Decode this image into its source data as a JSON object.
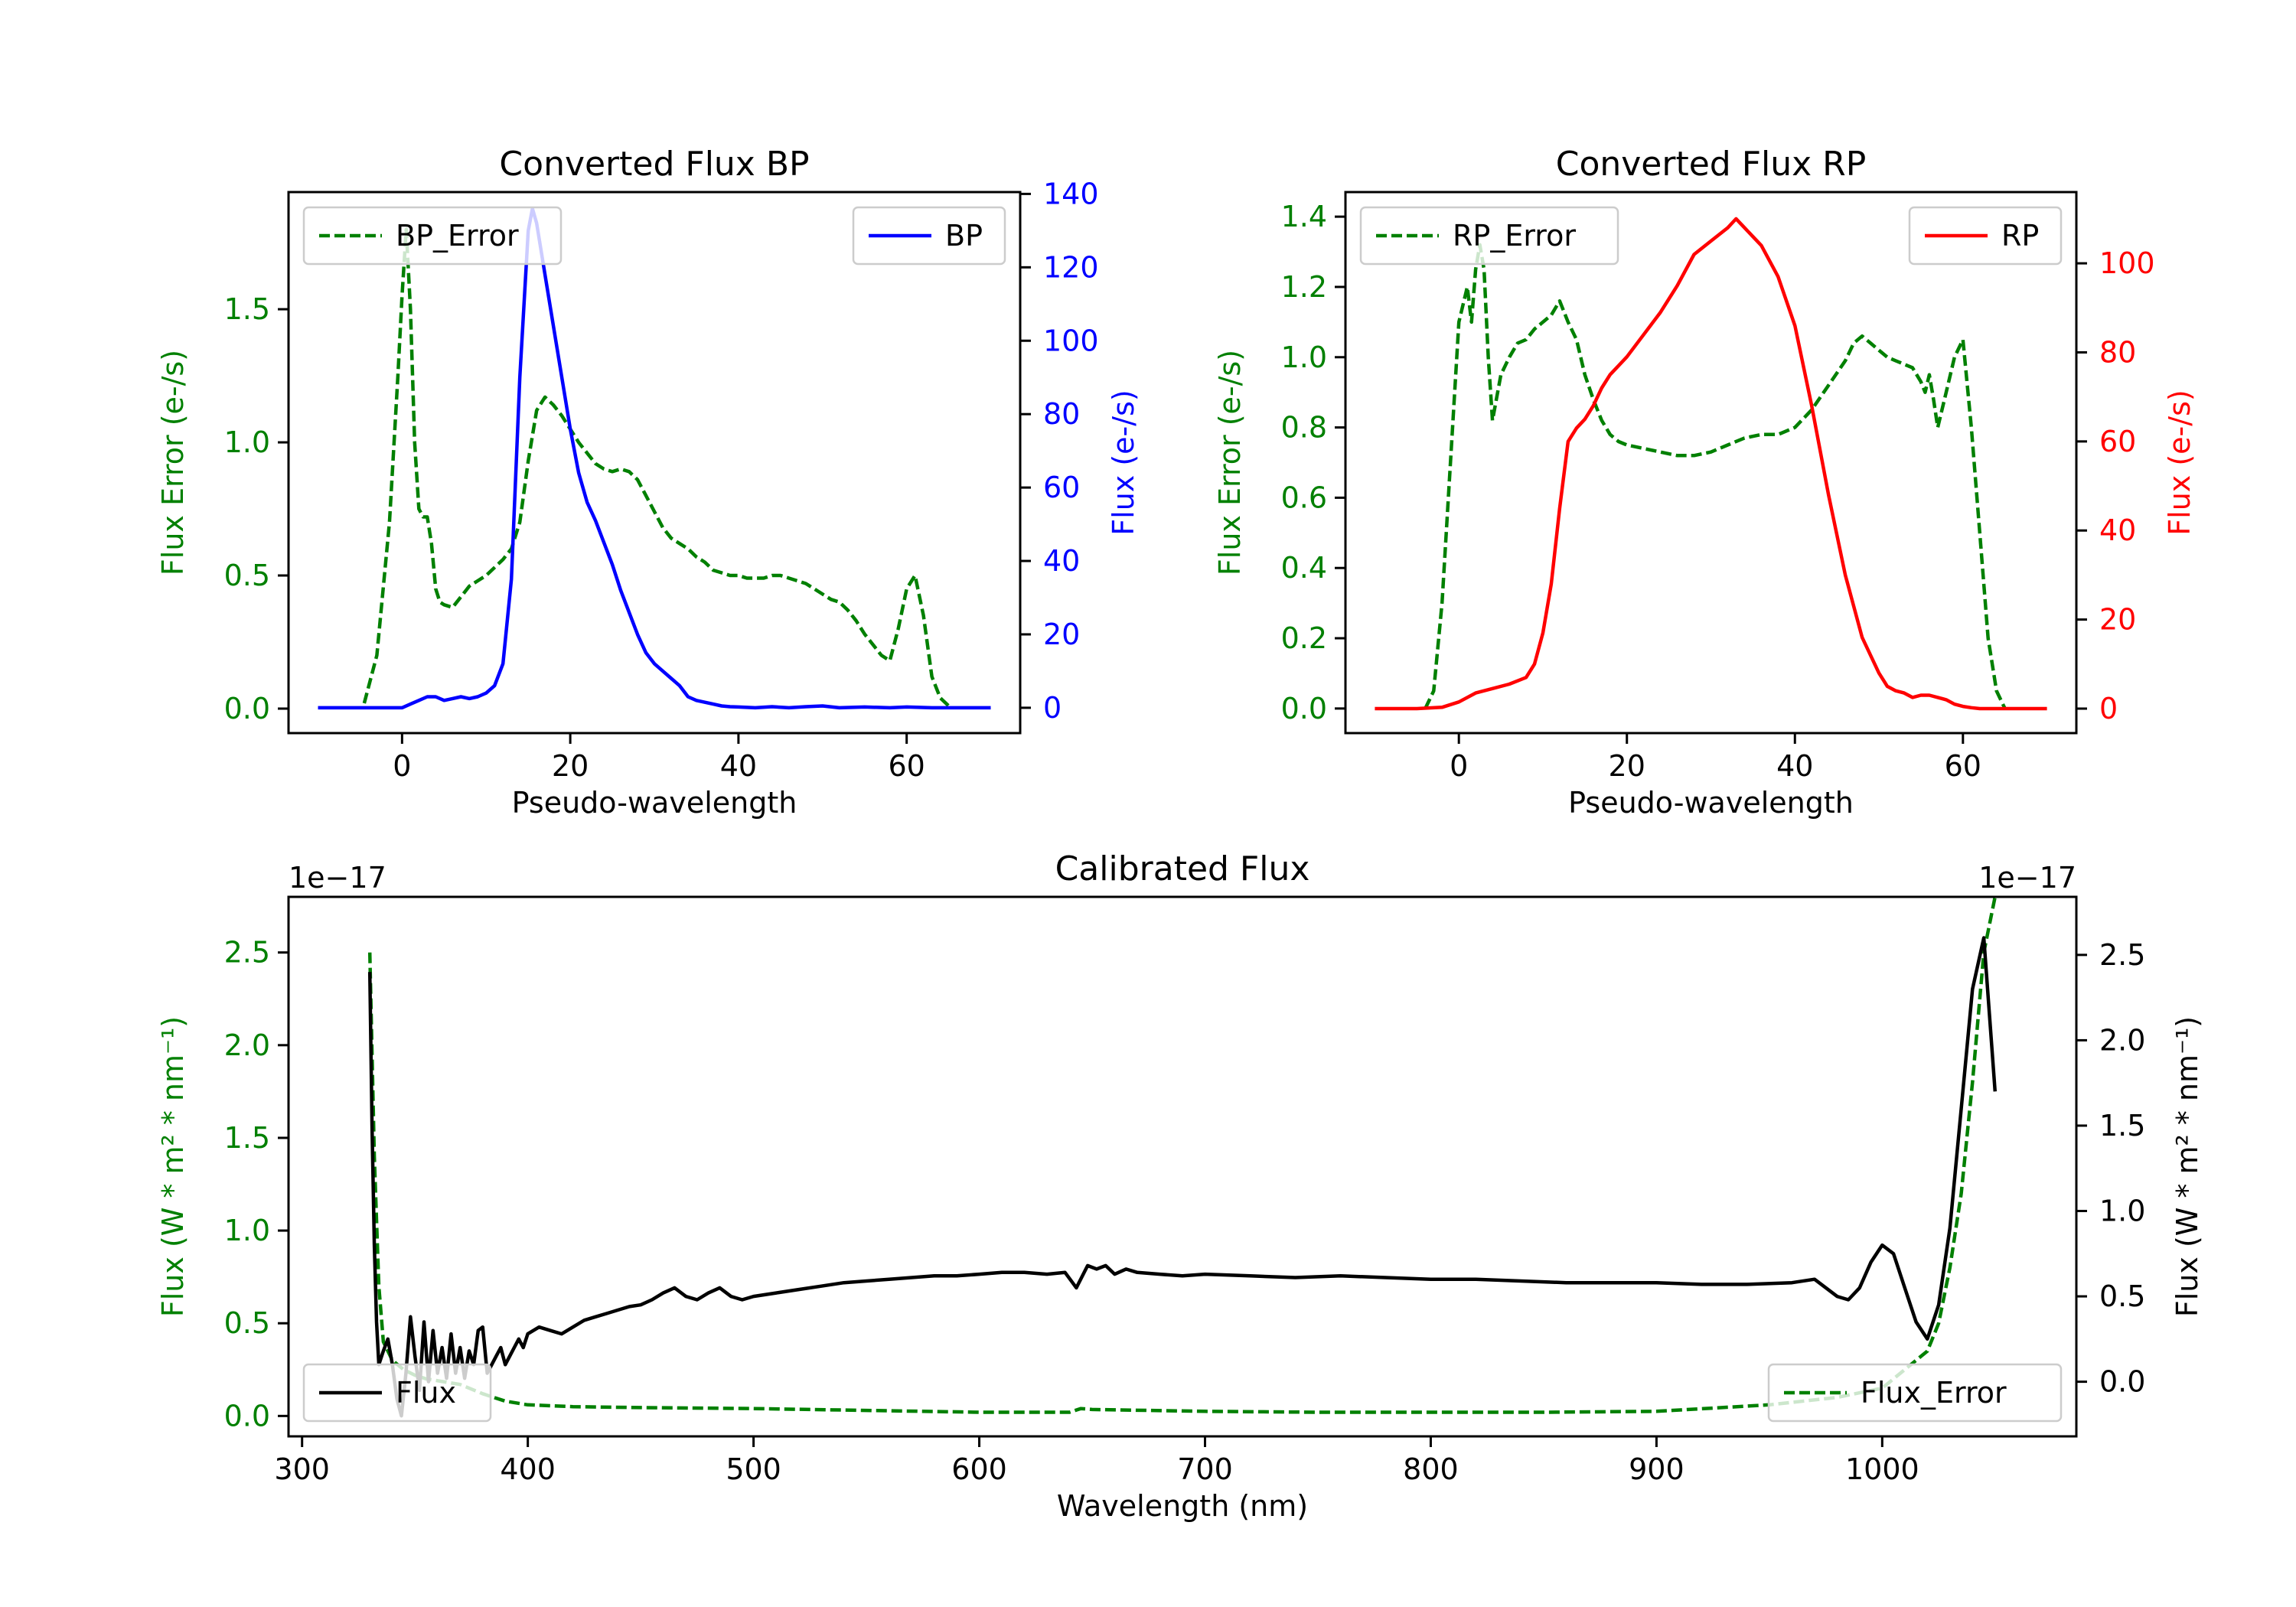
{
  "colors": {
    "bp": "#0000ff",
    "rp": "#ff0000",
    "error": "#008000",
    "flux": "#000000",
    "axis": "#000000",
    "legend_border": "#cccccc"
  },
  "chart_data": [
    {
      "id": "bp",
      "type": "line",
      "title": "Converted Flux BP",
      "xlabel": "Pseudo-wavelength",
      "xlim": [
        -13.5,
        73.5
      ],
      "xticks": [
        0,
        20,
        40,
        60
      ],
      "tick_labels_x": [
        "0",
        "20",
        "40",
        "60"
      ],
      "left_axis": {
        "label": "Flux Error (e-/s)",
        "color": "#008000",
        "ylim": [
          -0.092,
          1.94
        ],
        "ticks": [
          0.0,
          0.5,
          1.0,
          1.5
        ],
        "tick_labels": [
          "0.0",
          "0.5",
          "1.0",
          "1.5"
        ]
      },
      "right_axis": {
        "label": "Flux (e-/s)",
        "color": "#0000ff",
        "ylim": [
          -6.9,
          140.5
        ],
        "ticks": [
          0,
          20,
          40,
          60,
          80,
          100,
          120,
          140
        ],
        "tick_labels": [
          "0",
          "20",
          "40",
          "60",
          "80",
          "100",
          "120",
          "140"
        ]
      },
      "legend_left": "BP_Error",
      "legend_right": "BP",
      "series": [
        {
          "name": "BP_Error",
          "axis": "left",
          "style": "dashed",
          "color": "#008000",
          "x": [
            -4.5,
            -3,
            -1.5,
            -0.5,
            0,
            0.5,
            1,
            1.5,
            2,
            2.5,
            3,
            3.5,
            4,
            4.5,
            5,
            6,
            7,
            8,
            9,
            10,
            11,
            12,
            13,
            14,
            15,
            16,
            17,
            18,
            19,
            20,
            21,
            22,
            23,
            24,
            25,
            26,
            27,
            28,
            29,
            30,
            31,
            32,
            33,
            34,
            35,
            36,
            37,
            38,
            39,
            40,
            41,
            42,
            43,
            44,
            45,
            46,
            47,
            48,
            49,
            50,
            51,
            52,
            53,
            54,
            55,
            56,
            57,
            58,
            59,
            60,
            61,
            62,
            63,
            64,
            65
          ],
          "y": [
            0.02,
            0.2,
            0.7,
            1.25,
            1.55,
            1.8,
            1.5,
            1.0,
            0.75,
            0.72,
            0.72,
            0.62,
            0.45,
            0.4,
            0.39,
            0.38,
            0.42,
            0.46,
            0.48,
            0.5,
            0.53,
            0.56,
            0.6,
            0.7,
            0.93,
            1.12,
            1.17,
            1.14,
            1.1,
            1.05,
            1.0,
            0.96,
            0.92,
            0.9,
            0.89,
            0.9,
            0.89,
            0.86,
            0.8,
            0.74,
            0.68,
            0.64,
            0.62,
            0.6,
            0.57,
            0.55,
            0.52,
            0.51,
            0.5,
            0.5,
            0.49,
            0.49,
            0.49,
            0.5,
            0.5,
            0.49,
            0.48,
            0.47,
            0.45,
            0.43,
            0.41,
            0.4,
            0.37,
            0.33,
            0.28,
            0.24,
            0.2,
            0.18,
            0.3,
            0.45,
            0.5,
            0.35,
            0.12,
            0.04,
            0.01
          ]
        },
        {
          "name": "BP",
          "axis": "right",
          "style": "solid",
          "color": "#0000ff",
          "x": [
            -10,
            -5,
            0,
            1,
            2,
            3,
            4,
            5,
            6,
            7,
            8,
            9,
            10,
            11,
            12,
            13,
            14,
            15,
            15.5,
            16,
            17,
            18,
            19,
            20,
            21,
            22,
            23,
            24,
            25,
            26,
            27,
            28,
            29,
            30,
            31,
            32,
            33,
            34,
            35,
            36,
            37,
            38,
            39,
            40,
            42,
            44,
            46,
            48,
            50,
            52,
            55,
            58,
            60,
            63,
            66,
            70
          ],
          "y": [
            0,
            0,
            0,
            1,
            2,
            3,
            3,
            2,
            2.5,
            3,
            2.5,
            3,
            4,
            6,
            12,
            35,
            90,
            130,
            136,
            132,
            118,
            104,
            90,
            76,
            64,
            56,
            51,
            45,
            39,
            32,
            26,
            20,
            15,
            12,
            10,
            8,
            6,
            3,
            2,
            1.5,
            1,
            0.5,
            0.3,
            0.2,
            0,
            0.3,
            0,
            0.3,
            0.5,
            0,
            0.2,
            0,
            0.2,
            0,
            0,
            0
          ]
        }
      ]
    },
    {
      "id": "rp",
      "type": "line",
      "title": "Converted Flux RP",
      "xlabel": "Pseudo-wavelength",
      "xlim": [
        -13.5,
        73.5
      ],
      "xticks": [
        0,
        20,
        40,
        60
      ],
      "tick_labels_x": [
        "0",
        "20",
        "40",
        "60"
      ],
      "left_axis": {
        "label": "Flux Error (e-/s)",
        "color": "#008000",
        "ylim": [
          -0.07,
          1.47
        ],
        "ticks": [
          0.0,
          0.2,
          0.4,
          0.6,
          0.8,
          1.0,
          1.2,
          1.4
        ],
        "tick_labels": [
          "0.0",
          "0.2",
          "0.4",
          "0.6",
          "0.8",
          "1.0",
          "1.2",
          "1.4"
        ]
      },
      "right_axis": {
        "label": "Flux (e-/s)",
        "color": "#ff0000",
        "ylim": [
          -5.5,
          116
        ],
        "ticks": [
          0,
          20,
          40,
          60,
          80,
          100
        ],
        "tick_labels": [
          "0",
          "20",
          "40",
          "60",
          "80",
          "100"
        ]
      },
      "legend_left": "RP_Error",
      "legend_right": "RP",
      "series": [
        {
          "name": "RP_Error",
          "axis": "left",
          "style": "dashed",
          "color": "#008000",
          "x": [
            -4,
            -3,
            -2,
            -1,
            0,
            0.5,
            1,
            1.5,
            2,
            2.5,
            3,
            3.5,
            4,
            5,
            6,
            7,
            8,
            9,
            10,
            11,
            12,
            13,
            14,
            15,
            16,
            17,
            18,
            19,
            20,
            22,
            24,
            26,
            28,
            30,
            32,
            34,
            36,
            38,
            40,
            42,
            44,
            46,
            47,
            48,
            49,
            50,
            51,
            52,
            53,
            54,
            55,
            55.5,
            56,
            56.5,
            57,
            58,
            59,
            60,
            61,
            62,
            63,
            64,
            65
          ],
          "y": [
            0.0,
            0.05,
            0.3,
            0.7,
            1.1,
            1.15,
            1.2,
            1.1,
            1.25,
            1.32,
            1.25,
            1.0,
            0.82,
            0.95,
            1.0,
            1.04,
            1.05,
            1.08,
            1.1,
            1.12,
            1.16,
            1.1,
            1.05,
            0.95,
            0.88,
            0.82,
            0.78,
            0.76,
            0.75,
            0.74,
            0.73,
            0.72,
            0.72,
            0.73,
            0.75,
            0.77,
            0.78,
            0.78,
            0.8,
            0.85,
            0.92,
            0.99,
            1.04,
            1.06,
            1.04,
            1.02,
            1.0,
            0.99,
            0.98,
            0.97,
            0.93,
            0.9,
            0.95,
            0.88,
            0.8,
            0.9,
            1.0,
            1.05,
            0.8,
            0.5,
            0.2,
            0.05,
            0.0
          ]
        },
        {
          "name": "RP",
          "axis": "right",
          "style": "solid",
          "color": "#ff0000",
          "x": [
            -10,
            -5,
            -2,
            0,
            2,
            4,
            6,
            8,
            9,
            10,
            11,
            12,
            13,
            14,
            15,
            16,
            17,
            18,
            19,
            20,
            22,
            24,
            26,
            28,
            30,
            32,
            33,
            34,
            36,
            38,
            40,
            42,
            44,
            46,
            48,
            50,
            51,
            52,
            53,
            54,
            55,
            56,
            57,
            58,
            59,
            60,
            61,
            62,
            64,
            66,
            70
          ],
          "y": [
            0,
            0,
            0.3,
            1.5,
            3.5,
            4.5,
            5.5,
            7,
            10,
            17,
            28,
            45,
            60,
            63,
            65,
            68,
            72,
            75,
            77,
            79,
            84,
            89,
            95,
            102,
            105,
            108,
            110,
            108,
            104,
            97,
            86,
            68,
            48,
            30,
            16,
            8,
            5,
            4,
            3.5,
            2.5,
            3,
            3,
            2.5,
            2,
            1,
            0.5,
            0.2,
            0,
            0,
            0,
            0
          ]
        }
      ]
    },
    {
      "id": "cal",
      "type": "line",
      "title": "Calibrated Flux",
      "xlabel": "Wavelength (nm)",
      "xlim": [
        294,
        1086
      ],
      "xticks": [
        300,
        400,
        500,
        600,
        700,
        800,
        900,
        1000
      ],
      "tick_labels_x": [
        "300",
        "400",
        "500",
        "600",
        "700",
        "800",
        "900",
        "1000"
      ],
      "left_axis": {
        "label": "Flux (W * m² * nm⁻¹)",
        "offset_label": "1e−17",
        "color": "#008000",
        "ylim": [
          -0.11,
          2.8
        ],
        "ticks": [
          0.0,
          0.5,
          1.0,
          1.5,
          2.0,
          2.5
        ],
        "tick_labels": [
          "0.0",
          "0.5",
          "1.0",
          "1.5",
          "2.0",
          "2.5"
        ]
      },
      "right_axis": {
        "label": "Flux (W * m² * nm⁻¹)",
        "offset_label": "1e−17",
        "color": "#000000",
        "ylim": [
          -0.32,
          2.84
        ],
        "ticks": [
          0.0,
          0.5,
          1.0,
          1.5,
          2.0,
          2.5
        ],
        "tick_labels": [
          "0.0",
          "0.5",
          "1.0",
          "1.5",
          "2.0",
          "2.5"
        ]
      },
      "legend_left": "Flux",
      "legend_right": "Flux_Error",
      "series": [
        {
          "name": "Flux_Error",
          "axis": "left",
          "style": "dashed",
          "color": "#008000",
          "x": [
            330,
            332,
            334,
            336,
            340,
            345,
            350,
            355,
            360,
            370,
            380,
            390,
            400,
            420,
            450,
            500,
            550,
            600,
            640,
            645,
            650,
            700,
            750,
            800,
            850,
            900,
            950,
            980,
            1000,
            1010,
            1020,
            1025,
            1030,
            1035,
            1040,
            1045,
            1050
          ],
          "y": [
            2.5,
            1.4,
            0.7,
            0.4,
            0.3,
            0.25,
            0.22,
            0.2,
            0.19,
            0.17,
            0.12,
            0.08,
            0.06,
            0.05,
            0.045,
            0.04,
            0.03,
            0.02,
            0.02,
            0.04,
            0.035,
            0.025,
            0.02,
            0.02,
            0.02,
            0.025,
            0.06,
            0.1,
            0.15,
            0.25,
            0.35,
            0.5,
            0.8,
            1.2,
            1.8,
            2.5,
            2.8
          ]
        },
        {
          "name": "Flux",
          "axis": "right",
          "style": "solid",
          "color": "#000000",
          "x": [
            330,
            331,
            332,
            333,
            334,
            336,
            338,
            340,
            342,
            344,
            346,
            348,
            350,
            352,
            354,
            356,
            358,
            360,
            362,
            364,
            366,
            368,
            370,
            372,
            374,
            376,
            378,
            380,
            382,
            384,
            386,
            388,
            390,
            392,
            394,
            396,
            398,
            400,
            405,
            410,
            415,
            420,
            425,
            430,
            435,
            440,
            445,
            450,
            455,
            460,
            465,
            470,
            475,
            480,
            485,
            490,
            495,
            500,
            510,
            520,
            530,
            540,
            550,
            560,
            570,
            580,
            590,
            600,
            610,
            620,
            630,
            638,
            643,
            648,
            652,
            656,
            660,
            665,
            670,
            680,
            690,
            700,
            720,
            740,
            760,
            780,
            800,
            820,
            840,
            860,
            880,
            900,
            920,
            940,
            960,
            970,
            980,
            985,
            990,
            995,
            1000,
            1005,
            1010,
            1015,
            1020,
            1025,
            1030,
            1035,
            1040,
            1045,
            1050
          ],
          "y": [
            2.4,
            1.5,
            0.8,
            0.35,
            0.1,
            0.18,
            0.25,
            0.1,
            -0.1,
            -0.2,
            0.05,
            0.38,
            0.15,
            -0.05,
            0.35,
            0.0,
            0.3,
            0.05,
            0.2,
            0.02,
            0.28,
            0.05,
            0.2,
            0.02,
            0.18,
            0.1,
            0.3,
            0.32,
            0.05,
            0.1,
            0.15,
            0.2,
            0.1,
            0.15,
            0.2,
            0.25,
            0.2,
            0.28,
            0.32,
            0.3,
            0.28,
            0.32,
            0.36,
            0.38,
            0.4,
            0.42,
            0.44,
            0.45,
            0.48,
            0.52,
            0.55,
            0.5,
            0.48,
            0.52,
            0.55,
            0.5,
            0.48,
            0.5,
            0.52,
            0.54,
            0.56,
            0.58,
            0.59,
            0.6,
            0.61,
            0.62,
            0.62,
            0.63,
            0.64,
            0.64,
            0.63,
            0.64,
            0.55,
            0.68,
            0.66,
            0.68,
            0.63,
            0.66,
            0.64,
            0.63,
            0.62,
            0.63,
            0.62,
            0.61,
            0.62,
            0.61,
            0.6,
            0.6,
            0.59,
            0.58,
            0.58,
            0.58,
            0.57,
            0.57,
            0.58,
            0.6,
            0.5,
            0.48,
            0.55,
            0.7,
            0.8,
            0.75,
            0.55,
            0.35,
            0.25,
            0.45,
            0.9,
            1.6,
            2.3,
            2.6,
            1.7
          ]
        }
      ]
    }
  ]
}
